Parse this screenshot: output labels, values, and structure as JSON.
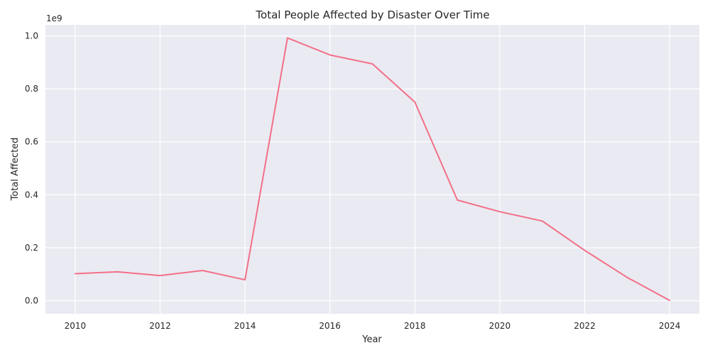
{
  "chart_data": {
    "type": "line",
    "title": "Total People Affected by Disaster Over Time",
    "xlabel": "Year",
    "ylabel": "Total Affected",
    "y_offset_label": "1e9",
    "x": [
      2010,
      2011,
      2012,
      2013,
      2014,
      2015,
      2016,
      2017,
      2018,
      2019,
      2020,
      2021,
      2022,
      2023,
      2024
    ],
    "series": [
      {
        "values": [
          102000000,
          109000000,
          95000000,
          114000000,
          79000000,
          992000000,
          928000000,
          894000000,
          750000000,
          380000000,
          336000000,
          301000000,
          190000000,
          88000000,
          1000000
        ],
        "color": "#f37088"
      }
    ],
    "x_ticks": [
      2010,
      2012,
      2014,
      2016,
      2018,
      2020,
      2022,
      2024
    ],
    "x_tick_labels": [
      "2010",
      "2012",
      "2014",
      "2016",
      "2018",
      "2020",
      "2022",
      "2024"
    ],
    "y_ticks": [
      0,
      200000000,
      400000000,
      600000000,
      800000000,
      1000000000
    ],
    "y_tick_labels": [
      "0.0",
      "0.2",
      "0.4",
      "0.6",
      "0.8",
      "1.0"
    ],
    "xlim": [
      2009.3,
      2024.7
    ],
    "ylim": [
      -49500000,
      1041500000
    ],
    "grid": true,
    "background_color": "#eaeaf2",
    "grid_color": "#ffffff"
  }
}
